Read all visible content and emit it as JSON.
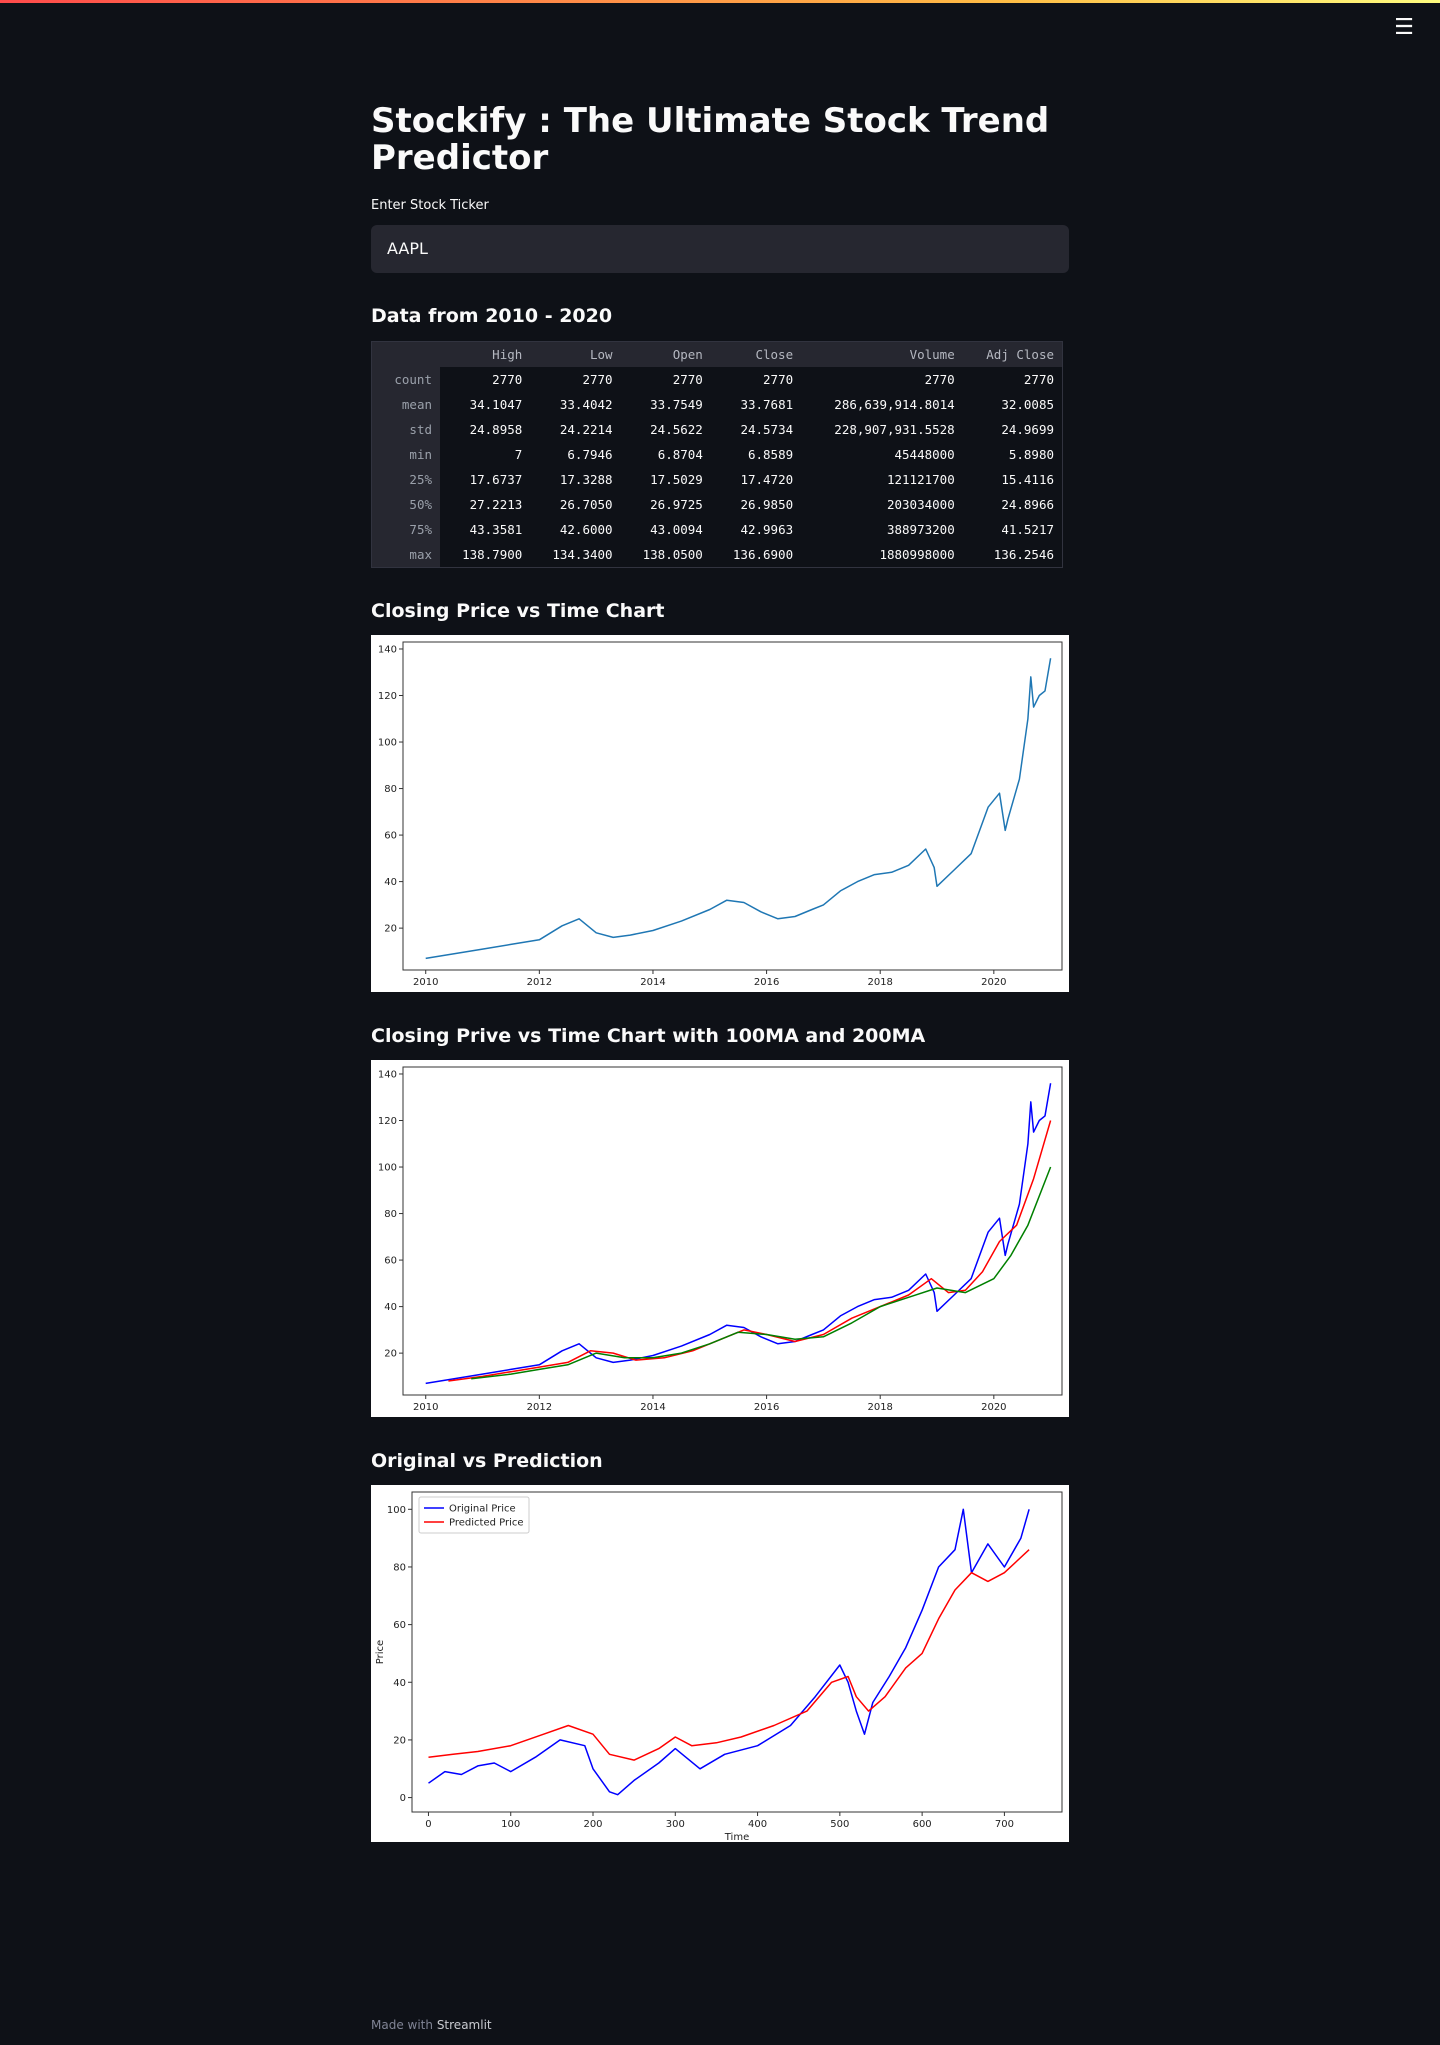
{
  "app": {
    "title": "Stockify : The Ultimate Stock Trend Predictor",
    "menu_icon": "hamburger-icon",
    "accent_gradient": [
      "#ff4b4b",
      "#ffbd45",
      "#fffd80"
    ]
  },
  "ticker": {
    "label": "Enter Stock Ticker",
    "value": "AAPL"
  },
  "stats_section": {
    "heading": "Data from 2010 - 2020",
    "columns": [
      "High",
      "Low",
      "Open",
      "Close",
      "Volume",
      "Adj Close"
    ],
    "rows": [
      {
        "label": "count",
        "values": [
          "2770",
          "2770",
          "2770",
          "2770",
          "2770",
          "2770"
        ]
      },
      {
        "label": "mean",
        "values": [
          "34.1047",
          "33.4042",
          "33.7549",
          "33.7681",
          "286,639,914.8014",
          "32.0085"
        ]
      },
      {
        "label": "std",
        "values": [
          "24.8958",
          "24.2214",
          "24.5622",
          "24.5734",
          "228,907,931.5528",
          "24.9699"
        ]
      },
      {
        "label": "min",
        "values": [
          "7",
          "6.7946",
          "6.8704",
          "6.8589",
          "45448000",
          "5.8980"
        ]
      },
      {
        "label": "25%",
        "values": [
          "17.6737",
          "17.3288",
          "17.5029",
          "17.4720",
          "121121700",
          "15.4116"
        ]
      },
      {
        "label": "50%",
        "values": [
          "27.2213",
          "26.7050",
          "26.9725",
          "26.9850",
          "203034000",
          "24.8966"
        ]
      },
      {
        "label": "75%",
        "values": [
          "43.3581",
          "42.6000",
          "43.0094",
          "42.9963",
          "388973200",
          "41.5217"
        ]
      },
      {
        "label": "max",
        "values": [
          "138.7900",
          "134.3400",
          "138.0500",
          "136.6900",
          "1880998000",
          "136.2546"
        ]
      }
    ]
  },
  "chart1_heading": "Closing Price vs Time Chart",
  "chart2_heading": "Closing Prive vs Time Chart with 100MA and 200MA",
  "chart3_heading": "Original vs Prediction",
  "chart_data": [
    {
      "type": "line",
      "title": "",
      "xlabel": "",
      "ylabel": "",
      "xlim": [
        2009.6,
        2021.2
      ],
      "ylim": [
        2,
        143
      ],
      "xticks": [
        2010,
        2012,
        2014,
        2016,
        2018,
        2020
      ],
      "yticks": [
        20,
        40,
        60,
        80,
        100,
        120,
        140
      ],
      "grid": false,
      "series": [
        {
          "color": "#1f77b4",
          "x": [
            2010.0,
            2010.5,
            2011.0,
            2011.5,
            2012.0,
            2012.4,
            2012.7,
            2013.0,
            2013.3,
            2013.6,
            2014.0,
            2014.5,
            2015.0,
            2015.3,
            2015.6,
            2015.9,
            2016.2,
            2016.5,
            2016.8,
            2017.0,
            2017.3,
            2017.6,
            2017.9,
            2018.2,
            2018.5,
            2018.8,
            2018.95,
            2019.0,
            2019.3,
            2019.6,
            2019.9,
            2020.1,
            2020.2,
            2020.25,
            2020.45,
            2020.6,
            2020.65,
            2020.7,
            2020.8,
            2020.9,
            2021.0
          ],
          "y": [
            7,
            9,
            11,
            13,
            15,
            21,
            24,
            18,
            16,
            17,
            19,
            23,
            28,
            32,
            31,
            27,
            24,
            25,
            28,
            30,
            36,
            40,
            43,
            44,
            47,
            54,
            46,
            38,
            45,
            52,
            72,
            78,
            62,
            67,
            84,
            110,
            128,
            115,
            120,
            122,
            136
          ]
        }
      ]
    },
    {
      "type": "line",
      "title": "",
      "xlabel": "",
      "ylabel": "",
      "xlim": [
        2009.6,
        2021.2
      ],
      "ylim": [
        2,
        143
      ],
      "xticks": [
        2010,
        2012,
        2014,
        2016,
        2018,
        2020
      ],
      "yticks": [
        20,
        40,
        60,
        80,
        100,
        120,
        140
      ],
      "grid": false,
      "series": [
        {
          "color": "#0000ff",
          "x": [
            2010.0,
            2010.5,
            2011.0,
            2011.5,
            2012.0,
            2012.4,
            2012.7,
            2013.0,
            2013.3,
            2013.6,
            2014.0,
            2014.5,
            2015.0,
            2015.3,
            2015.6,
            2015.9,
            2016.2,
            2016.5,
            2016.8,
            2017.0,
            2017.3,
            2017.6,
            2017.9,
            2018.2,
            2018.5,
            2018.8,
            2018.95,
            2019.0,
            2019.3,
            2019.6,
            2019.9,
            2020.1,
            2020.2,
            2020.25,
            2020.45,
            2020.6,
            2020.65,
            2020.7,
            2020.8,
            2020.9,
            2021.0
          ],
          "y": [
            7,
            9,
            11,
            13,
            15,
            21,
            24,
            18,
            16,
            17,
            19,
            23,
            28,
            32,
            31,
            27,
            24,
            25,
            28,
            30,
            36,
            40,
            43,
            44,
            47,
            54,
            46,
            38,
            45,
            52,
            72,
            78,
            62,
            67,
            84,
            110,
            128,
            115,
            120,
            122,
            136
          ]
        },
        {
          "color": "#ff0000",
          "x": [
            2010.4,
            2011.0,
            2011.5,
            2012.0,
            2012.5,
            2012.9,
            2013.3,
            2013.7,
            2014.2,
            2014.7,
            2015.2,
            2015.6,
            2016.0,
            2016.5,
            2017.0,
            2017.5,
            2018.0,
            2018.5,
            2018.9,
            2019.2,
            2019.5,
            2019.8,
            2020.1,
            2020.4,
            2020.7,
            2021.0
          ],
          "y": [
            8,
            10,
            12,
            14,
            16,
            21,
            20,
            17,
            18,
            21,
            26,
            30,
            28,
            25,
            28,
            35,
            40,
            45,
            52,
            46,
            47,
            55,
            68,
            75,
            95,
            120
          ]
        },
        {
          "color": "#008000",
          "x": [
            2010.8,
            2011.5,
            2012.0,
            2012.5,
            2013.0,
            2013.5,
            2014.0,
            2014.5,
            2015.0,
            2015.5,
            2016.0,
            2016.5,
            2017.0,
            2017.5,
            2018.0,
            2018.5,
            2019.0,
            2019.5,
            2020.0,
            2020.3,
            2020.6,
            2021.0
          ],
          "y": [
            9,
            11,
            13,
            15,
            20,
            18,
            18,
            20,
            24,
            29,
            28,
            26,
            27,
            33,
            40,
            44,
            48,
            46,
            52,
            62,
            75,
            100
          ]
        }
      ]
    },
    {
      "type": "line",
      "title": "",
      "xlabel": "Time",
      "ylabel": "Price",
      "xlim": [
        -20,
        770
      ],
      "ylim": [
        -5,
        106
      ],
      "xticks": [
        0,
        100,
        200,
        300,
        400,
        500,
        600,
        700
      ],
      "yticks": [
        0,
        20,
        40,
        60,
        80,
        100
      ],
      "grid": false,
      "legend": "top-left",
      "series": [
        {
          "name": "Original Price",
          "color": "#0000ff",
          "x": [
            0,
            20,
            40,
            60,
            80,
            100,
            130,
            160,
            190,
            200,
            220,
            230,
            250,
            280,
            300,
            330,
            360,
            400,
            440,
            470,
            500,
            510,
            520,
            530,
            540,
            560,
            580,
            600,
            620,
            640,
            650,
            660,
            680,
            700,
            720,
            730
          ],
          "y": [
            5,
            9,
            8,
            11,
            12,
            9,
            14,
            20,
            18,
            10,
            2,
            1,
            6,
            12,
            17,
            10,
            15,
            18,
            25,
            35,
            46,
            40,
            30,
            22,
            33,
            42,
            52,
            65,
            80,
            86,
            100,
            78,
            88,
            80,
            90,
            100
          ]
        },
        {
          "name": "Predicted Price",
          "color": "#ff0000",
          "x": [
            0,
            30,
            60,
            100,
            140,
            170,
            200,
            220,
            250,
            280,
            300,
            320,
            350,
            380,
            420,
            460,
            490,
            510,
            520,
            535,
            555,
            580,
            600,
            620,
            640,
            660,
            680,
            700,
            730
          ],
          "y": [
            14,
            15,
            16,
            18,
            22,
            25,
            22,
            15,
            13,
            17,
            21,
            18,
            19,
            21,
            25,
            30,
            40,
            42,
            35,
            30,
            35,
            45,
            50,
            62,
            72,
            78,
            75,
            78,
            86
          ]
        }
      ]
    }
  ],
  "footer": {
    "prefix": "Made with",
    "link": "Streamlit"
  }
}
